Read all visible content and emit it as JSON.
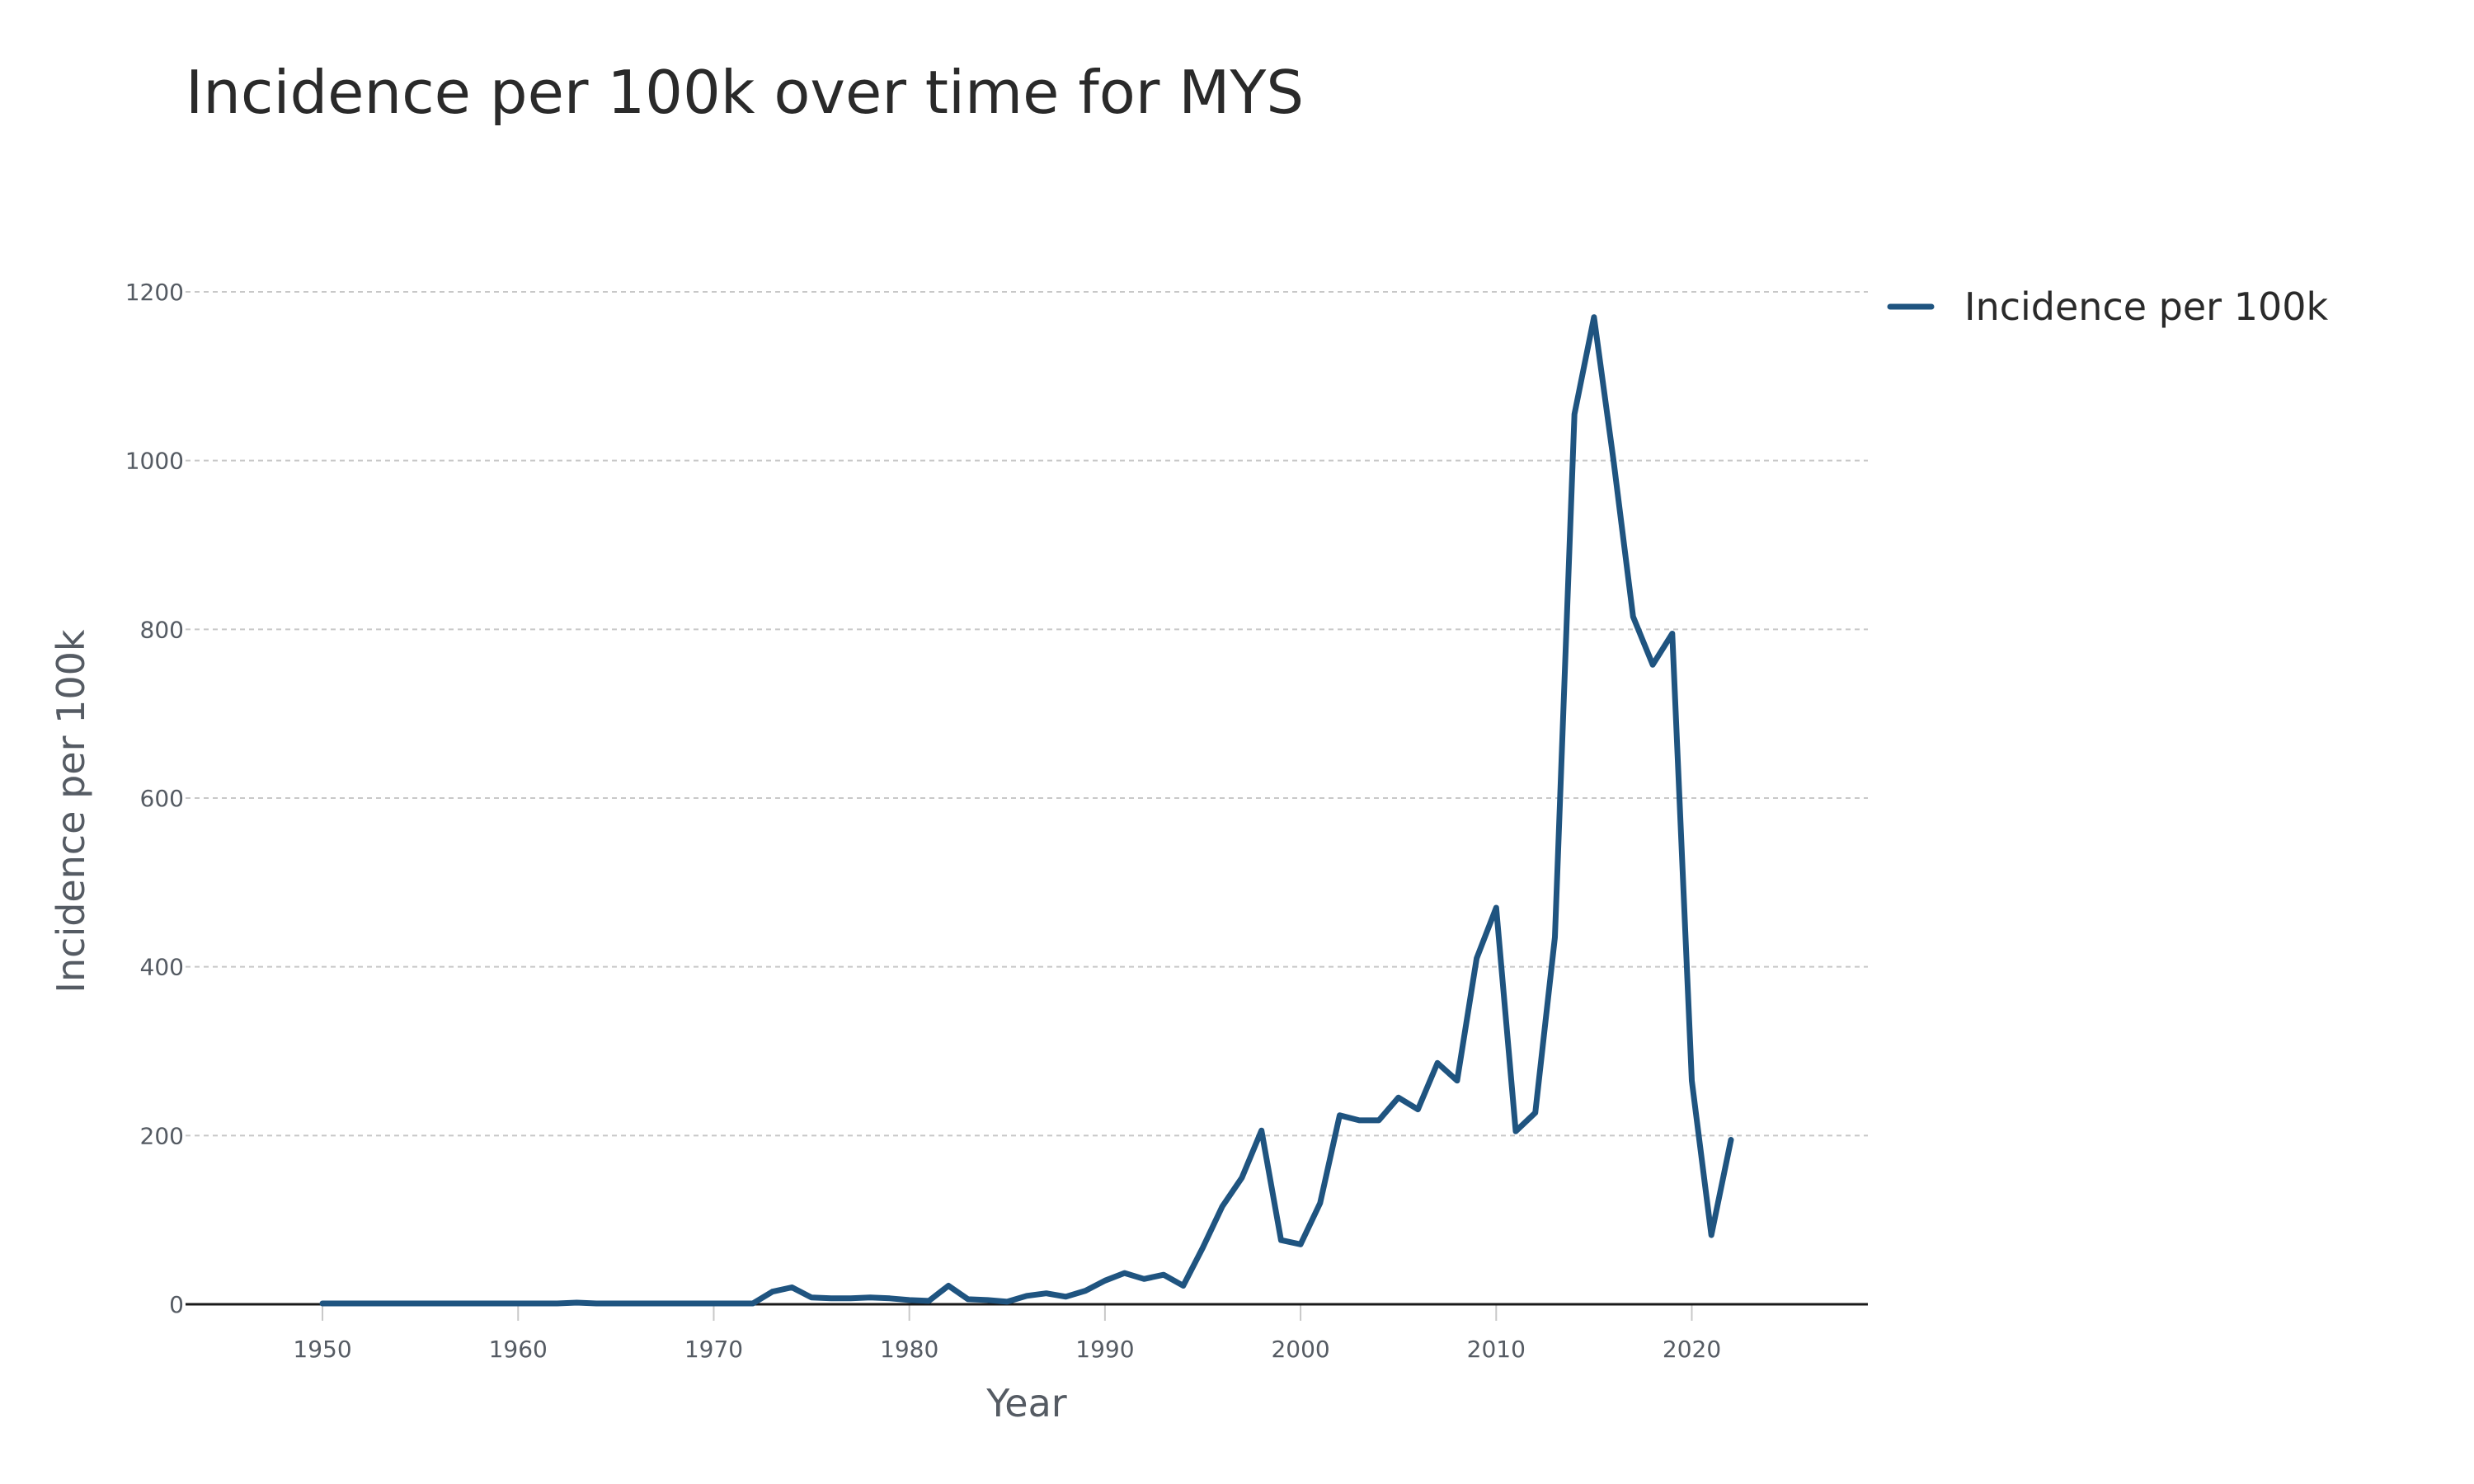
{
  "chart_data": {
    "type": "line",
    "title": "Incidence per 100k over time for MYS",
    "xlabel": "Year",
    "ylabel": "Incidence per 100k",
    "xlim": [
      1943,
      2029
    ],
    "ylim": [
      0,
      1200
    ],
    "x_ticks": [
      1950,
      1960,
      1970,
      1980,
      1990,
      2000,
      2010,
      2020
    ],
    "y_ticks": [
      0,
      200,
      400,
      600,
      800,
      1000,
      1200
    ],
    "grid": "y",
    "legend_position": "top-right",
    "line_color": "#1f5480",
    "series": [
      {
        "name": "Incidence per 100k",
        "x": [
          1950,
          1951,
          1952,
          1953,
          1954,
          1955,
          1956,
          1957,
          1958,
          1959,
          1960,
          1961,
          1962,
          1963,
          1964,
          1965,
          1966,
          1967,
          1968,
          1969,
          1970,
          1971,
          1972,
          1973,
          1974,
          1975,
          1976,
          1977,
          1978,
          1979,
          1980,
          1981,
          1982,
          1983,
          1984,
          1985,
          1986,
          1987,
          1988,
          1989,
          1990,
          1991,
          1992,
          1993,
          1994,
          1995,
          1996,
          1997,
          1998,
          1999,
          2000,
          2001,
          2002,
          2003,
          2004,
          2005,
          2006,
          2007,
          2008,
          2009,
          2010,
          2011,
          2012,
          2013,
          2014,
          2015,
          2016,
          2017,
          2018,
          2019,
          2020,
          2021,
          2022
        ],
        "values": [
          1,
          1,
          1,
          1,
          1,
          1,
          1,
          1,
          1,
          1,
          1,
          1,
          1,
          2,
          1,
          1,
          1,
          1,
          1,
          1,
          1,
          1,
          1,
          15,
          20,
          8,
          7,
          7,
          8,
          7,
          5,
          4,
          22,
          6,
          5,
          3,
          10,
          13,
          9,
          16,
          28,
          37,
          30,
          35,
          22,
          67,
          116,
          150,
          206,
          76,
          71,
          120,
          224,
          218,
          218,
          245,
          231,
          286,
          265,
          410,
          470,
          205,
          227,
          435,
          1055,
          1170,
          1000,
          815,
          758,
          795,
          265,
          82,
          195
        ]
      }
    ]
  }
}
